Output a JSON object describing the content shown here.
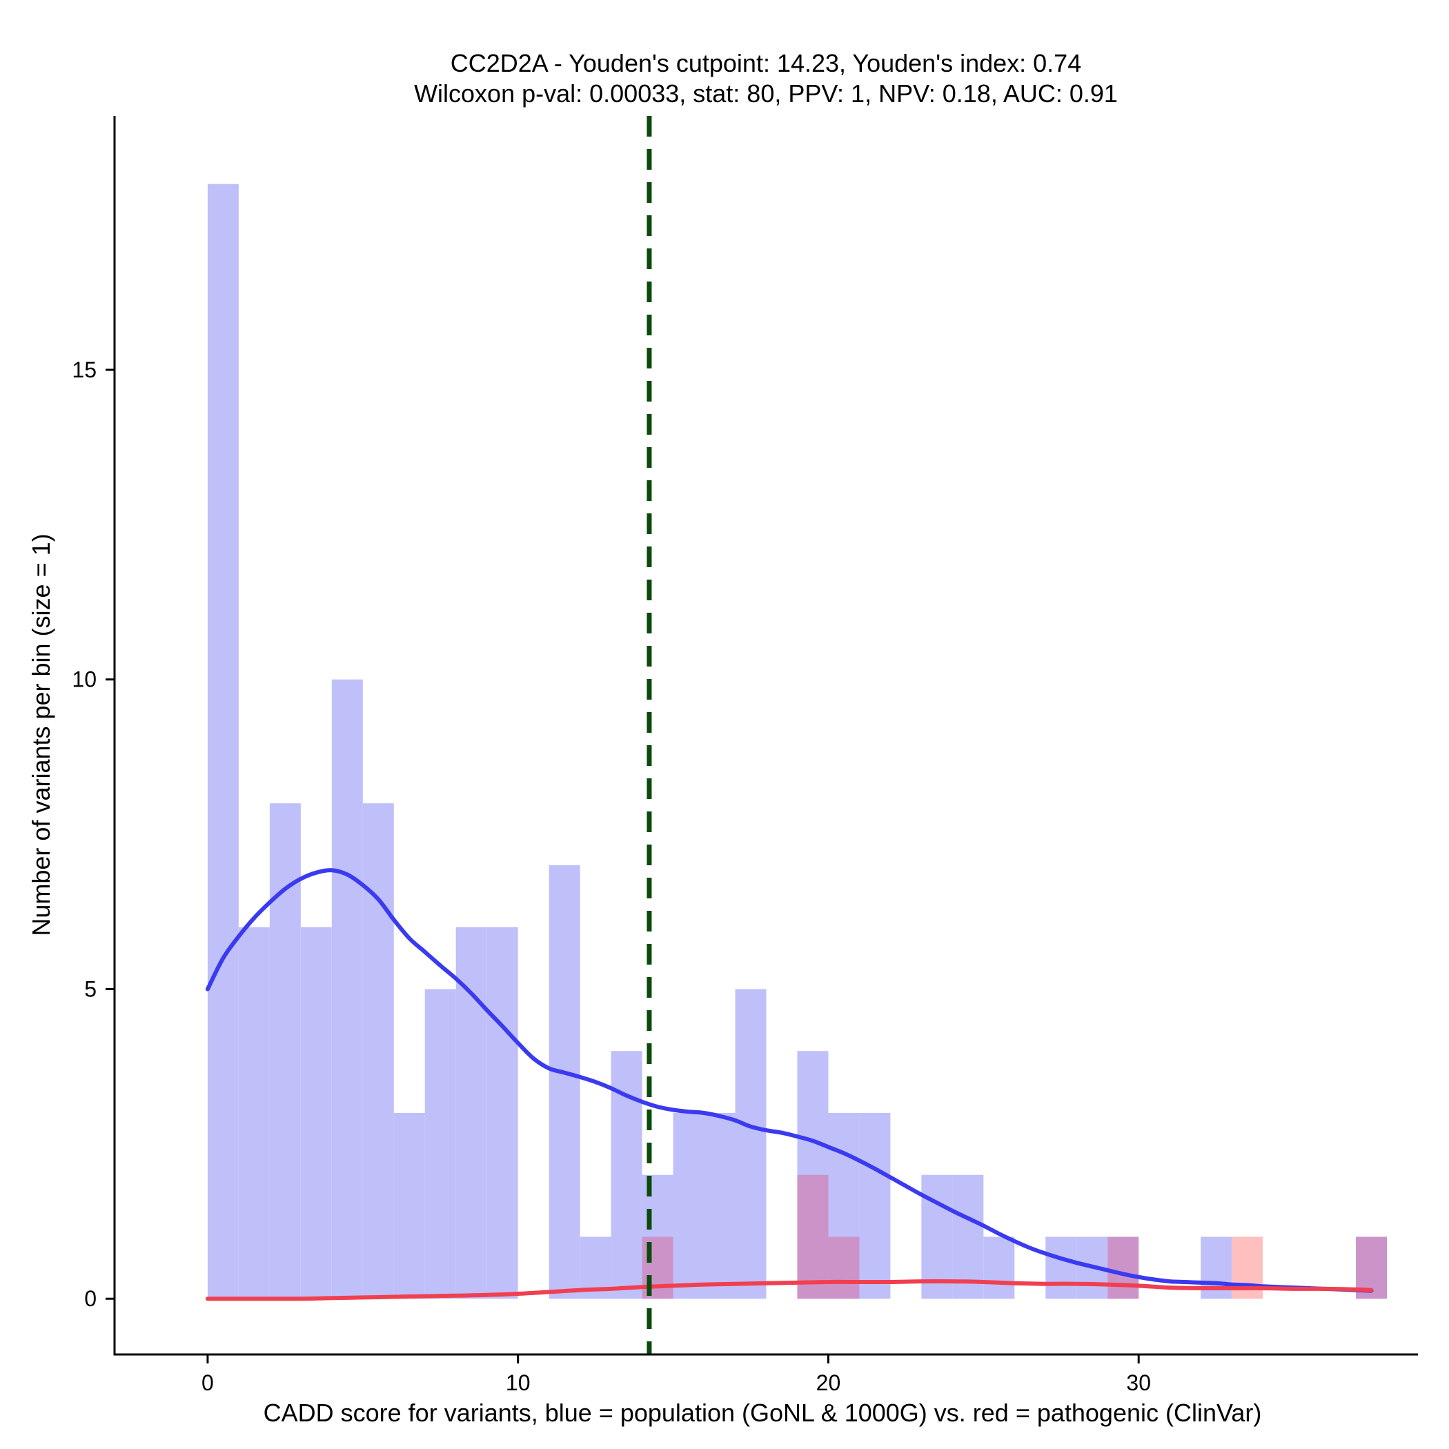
{
  "chart_data": {
    "type": "histogram",
    "title_line1": "CC2D2A - Youden's cutpoint: 14.23, Youden's index: 0.74",
    "title_line2": "Wilcoxon p-val: 0.00033, stat: 80, PPV: 1, NPV: 0.18, AUC: 0.91",
    "xlabel": "CADD score for variants, blue = population (GoNL & 1000G) vs. red = pathogenic (ClinVar)",
    "ylabel": "Number of variants per bin (size = 1)",
    "xlim": [
      -3,
      39
    ],
    "ylim": [
      -0.9,
      19.1
    ],
    "xticks": [
      0,
      10,
      20,
      30
    ],
    "yticks": [
      0,
      5,
      10,
      15
    ],
    "bin_size": 1,
    "cutpoint": 14.23,
    "colors": {
      "population_bar": "#bfbffa",
      "pathogenic_bar": "#ffbfbf",
      "overlap_bar": "#cc93c8",
      "population_density": "#3a3af0",
      "pathogenic_density": "#f04050",
      "cutpoint_line": "#0a4a0a"
    },
    "series": [
      {
        "name": "population (GoNL & 1000G)",
        "bin_starts": [
          0,
          1,
          2,
          3,
          4,
          5,
          6,
          7,
          8,
          9,
          10,
          11,
          12,
          13,
          14,
          15,
          16,
          17,
          18,
          19,
          20,
          21,
          22,
          23,
          24,
          25,
          26,
          27,
          28,
          29,
          30,
          31,
          32,
          33,
          34,
          35,
          36,
          37
        ],
        "values": [
          18,
          6,
          8,
          6,
          10,
          8,
          3,
          5,
          6,
          6,
          0,
          7,
          1,
          4,
          2,
          3,
          3,
          5,
          0,
          4,
          3,
          3,
          0,
          2,
          2,
          1,
          0,
          1,
          1,
          1,
          0,
          0,
          1,
          0,
          0,
          0,
          0,
          1
        ]
      },
      {
        "name": "pathogenic (ClinVar)",
        "bin_starts": [
          14,
          19,
          20,
          29,
          33,
          37
        ],
        "values": [
          1,
          2,
          1,
          1,
          1,
          1
        ]
      }
    ],
    "density_population": {
      "x": [
        0,
        0.5,
        1,
        1.5,
        2,
        2.5,
        3,
        3.5,
        4,
        4.5,
        5,
        5.5,
        6,
        6.5,
        7,
        7.5,
        8,
        8.5,
        9,
        9.5,
        10,
        10.5,
        11,
        11.5,
        12,
        12.5,
        13,
        13.5,
        14,
        14.5,
        15,
        15.5,
        16,
        16.5,
        17,
        17.5,
        18,
        18.5,
        19,
        19.5,
        20,
        20.5,
        21,
        21.5,
        22,
        22.5,
        23,
        23.5,
        24,
        24.5,
        25,
        25.5,
        26,
        26.5,
        27,
        27.5,
        28,
        28.5,
        29,
        29.5,
        30,
        30.5,
        31,
        31.5,
        32,
        32.5,
        33,
        33.5,
        34,
        34.5,
        35,
        35.5,
        36,
        36.5,
        37,
        37.5
      ],
      "y": [
        5.0,
        5.5,
        5.85,
        6.15,
        6.4,
        6.62,
        6.78,
        6.88,
        6.92,
        6.85,
        6.68,
        6.45,
        6.12,
        5.82,
        5.6,
        5.38,
        5.17,
        4.93,
        4.66,
        4.4,
        4.13,
        3.88,
        3.72,
        3.65,
        3.58,
        3.5,
        3.4,
        3.28,
        3.18,
        3.1,
        3.05,
        3.02,
        3.0,
        2.95,
        2.88,
        2.78,
        2.72,
        2.68,
        2.62,
        2.55,
        2.45,
        2.35,
        2.23,
        2.1,
        1.96,
        1.82,
        1.68,
        1.55,
        1.42,
        1.3,
        1.18,
        1.05,
        0.93,
        0.82,
        0.73,
        0.65,
        0.58,
        0.52,
        0.46,
        0.4,
        0.35,
        0.31,
        0.28,
        0.27,
        0.26,
        0.25,
        0.23,
        0.22,
        0.2,
        0.19,
        0.18,
        0.17,
        0.16,
        0.15,
        0.14,
        0.13
      ]
    },
    "density_pathogenic": {
      "x": [
        0,
        1,
        2,
        3,
        4,
        5,
        6,
        7,
        8,
        9,
        10,
        11,
        12,
        13,
        14,
        15,
        16,
        17,
        18,
        19,
        20,
        21,
        22,
        23,
        24,
        25,
        26,
        27,
        28,
        29,
        30,
        31,
        32,
        33,
        34,
        35,
        36,
        37,
        37.5
      ],
      "y": [
        0.0,
        0.0,
        0.0,
        0.0,
        0.01,
        0.02,
        0.03,
        0.04,
        0.05,
        0.06,
        0.08,
        0.11,
        0.14,
        0.16,
        0.19,
        0.21,
        0.23,
        0.24,
        0.25,
        0.26,
        0.27,
        0.27,
        0.27,
        0.28,
        0.28,
        0.27,
        0.25,
        0.24,
        0.24,
        0.23,
        0.21,
        0.18,
        0.17,
        0.17,
        0.17,
        0.16,
        0.16,
        0.15,
        0.14
      ]
    }
  }
}
